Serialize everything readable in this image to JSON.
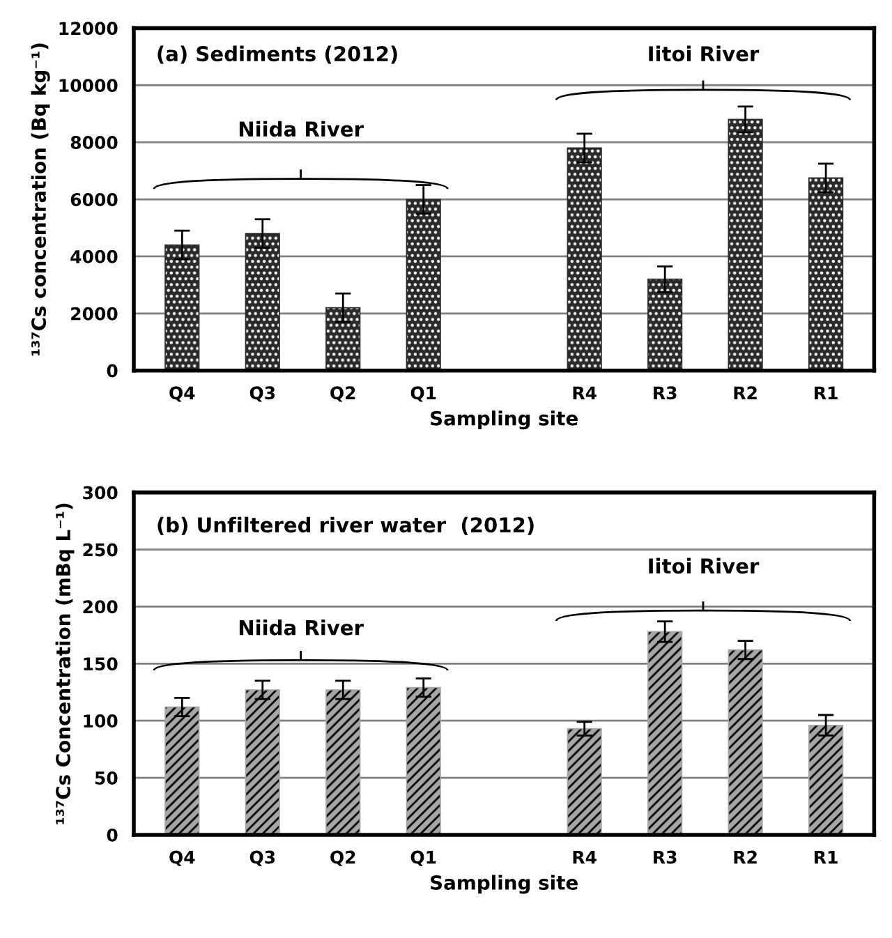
{
  "chart_data": [
    {
      "type": "bar",
      "ylabel": "¹³⁷Cs concentration (Bq kg⁻¹)",
      "xlabel": "Sampling site",
      "annotations": [
        "(a) Sediments (2012)",
        "Niida River",
        "Iitoi River"
      ],
      "categories": [
        "Q4",
        "Q3",
        "Q2",
        "Q1",
        null,
        "R4",
        "R3",
        "R2",
        "R1"
      ],
      "series": [
        {
          "color": "#2b2b2b",
          "values": [
            4400,
            4800,
            2200,
            6000,
            null,
            7800,
            3200,
            8800,
            6750
          ],
          "errors": [
            500,
            500,
            500,
            500,
            null,
            500,
            450,
            450,
            500
          ]
        }
      ],
      "ylim": [
        0,
        12000
      ],
      "yticks": [
        0,
        2000,
        4000,
        6000,
        8000,
        10000,
        12000
      ],
      "grid": "y",
      "legend": false
    },
    {
      "type": "bar",
      "ylabel": "¹³⁷Cs Concentration (mBq L⁻¹)",
      "xlabel": "Sampling site",
      "annotations": [
        "(b) Unfiltered river water  (2012)",
        "Niida River",
        "Iitoi River"
      ],
      "categories": [
        "Q4",
        "Q3",
        "Q2",
        "Q1",
        null,
        "R4",
        "R3",
        "R2",
        "R1"
      ],
      "series": [
        {
          "color": "#a6a6a6",
          "values": [
            112,
            127,
            127,
            129,
            null,
            93,
            178,
            162,
            96
          ],
          "errors": [
            8,
            8,
            8,
            8,
            null,
            6,
            9,
            8,
            9
          ]
        }
      ],
      "ylim": [
        0,
        300
      ],
      "yticks": [
        0,
        50,
        100,
        150,
        200,
        250,
        300
      ],
      "grid": "y",
      "legend": false
    }
  ]
}
